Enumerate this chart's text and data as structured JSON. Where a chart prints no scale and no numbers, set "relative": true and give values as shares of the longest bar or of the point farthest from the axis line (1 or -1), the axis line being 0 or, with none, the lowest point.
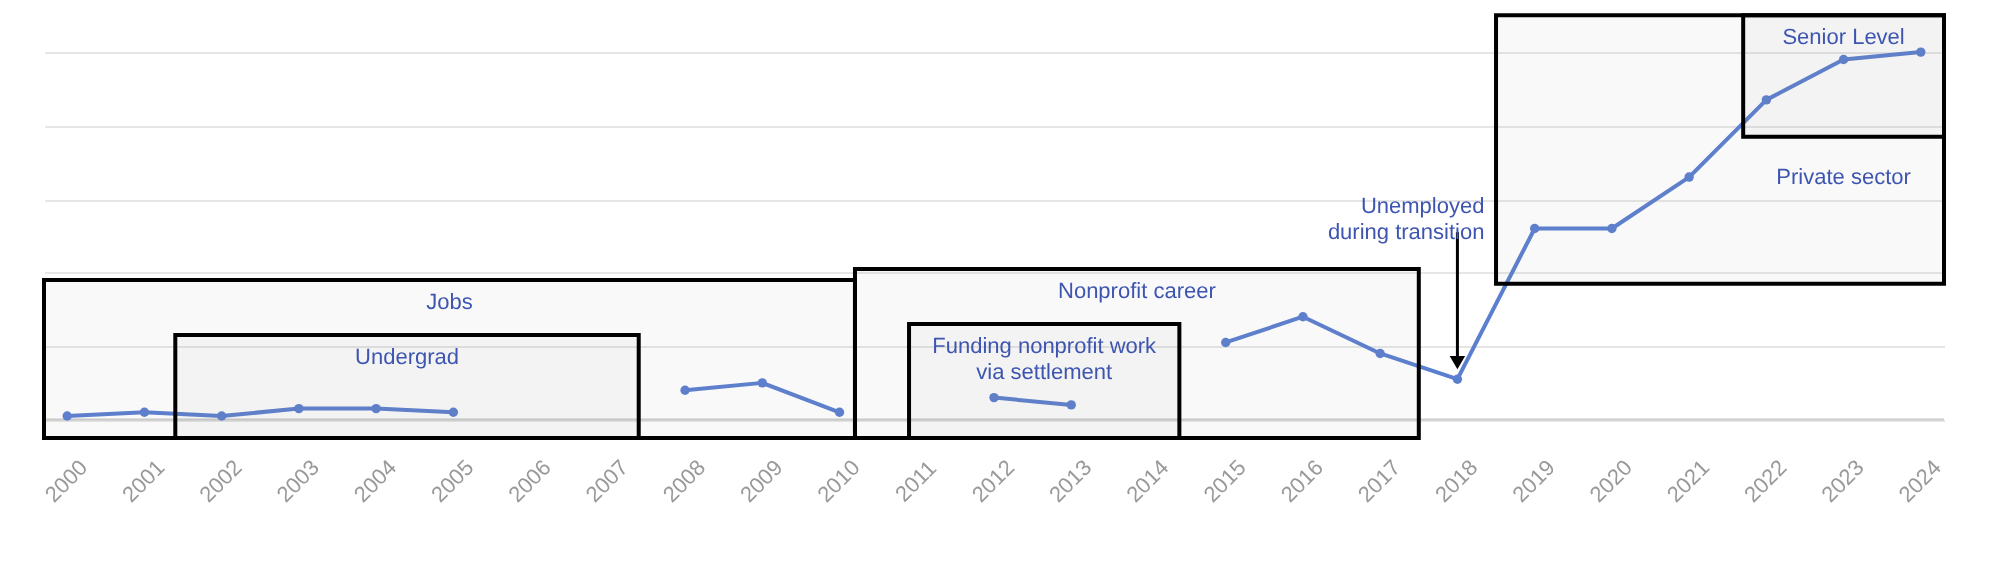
{
  "chart_data": {
    "type": "line",
    "relative": true,
    "x": [
      2000,
      2001,
      2002,
      2003,
      2004,
      2005,
      2006,
      2007,
      2008,
      2009,
      2010,
      2011,
      2012,
      2013,
      2014,
      2015,
      2016,
      2017,
      2018,
      2019,
      2020,
      2021,
      2022,
      2023,
      2024
    ],
    "series": [
      {
        "color": "#5b7fd0",
        "values": [
          0.01,
          0.02,
          0.01,
          0.03,
          0.03,
          0.02,
          null,
          null,
          0.08,
          0.1,
          0.02,
          null,
          0.06,
          0.04,
          null,
          0.21,
          0.28,
          0.18,
          0.11,
          0.52,
          0.52,
          0.66,
          0.87,
          0.98,
          1.0
        ]
      }
    ],
    "xlim": [
      1999.7,
      2024.3
    ],
    "xticks": [
      2000,
      2001,
      2002,
      2003,
      2004,
      2005,
      2006,
      2007,
      2008,
      2009,
      2010,
      2011,
      2012,
      2013,
      2014,
      2015,
      2016,
      2017,
      2018,
      2019,
      2020,
      2021,
      2022,
      2023,
      2024
    ],
    "bands": [
      {
        "axis": "x",
        "from": 1999.7,
        "to": 2010.2,
        "label": "Jobs"
      },
      {
        "axis": "x",
        "from": 2001.4,
        "to": 2007.4,
        "label": "Undergrad"
      },
      {
        "axis": "x",
        "from": 2010.2,
        "to": 2017.5,
        "label": "Nonprofit career"
      },
      {
        "axis": "x",
        "from": 2010.9,
        "to": 2014.4,
        "label": "Funding nonprofit work\nvia settlement"
      },
      {
        "axis": "x",
        "from": 2018.5,
        "to": 2024.3,
        "label": "Private sector"
      },
      {
        "axis": "x",
        "from": 2021.7,
        "to": 2024.3,
        "label": "Senior Level"
      }
    ],
    "annotations": [
      {
        "text": "Unemployed\nduring transition",
        "x": 2018,
        "y": 0.11
      }
    ],
    "grid": "y",
    "marker": "circle",
    "line_style": "solid",
    "legend": false
  }
}
